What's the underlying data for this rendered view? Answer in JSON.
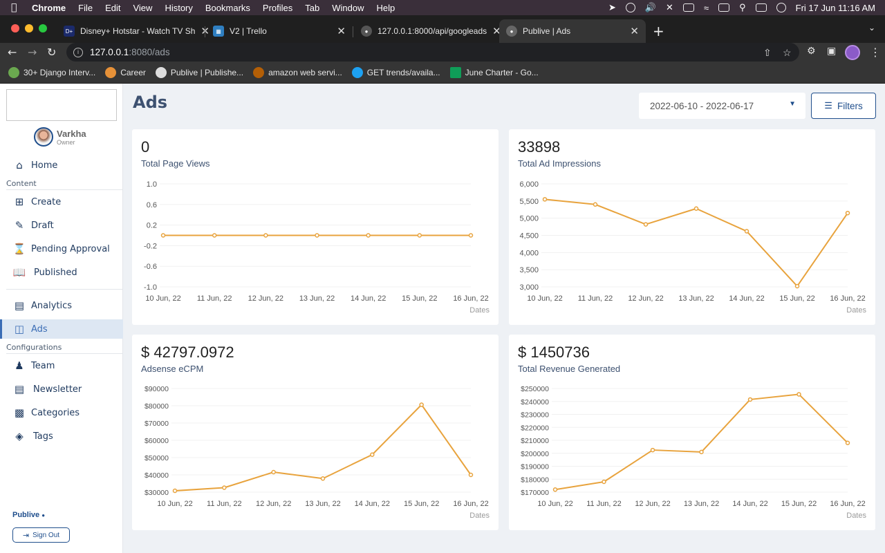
{
  "menubar": {
    "app": "Chrome",
    "items": [
      "File",
      "Edit",
      "View",
      "History",
      "Bookmarks",
      "Profiles",
      "Tab",
      "Window",
      "Help"
    ],
    "datetime": "Fri 17 Jun  11:16 AM"
  },
  "tabs": [
    {
      "title": "Disney+ Hotstar - Watch TV Sh",
      "icon": "hotstar-icon",
      "color": "#1b2a6b"
    },
    {
      "title": "V2 | Trello",
      "icon": "trello-icon",
      "color": "#2f7fc1"
    },
    {
      "title": "127.0.0.1:8000/api/googleads",
      "icon": "globe-icon",
      "color": "#777777"
    },
    {
      "title": "Publive | Ads",
      "icon": "globe-icon",
      "color": "#777777"
    }
  ],
  "address": {
    "host": "127.0.0.1",
    "path": ":8080/ads"
  },
  "bookmarks": [
    {
      "label": "30+ Django Interv...",
      "color": "#6aa84f"
    },
    {
      "label": "Career",
      "color": "#e69138"
    },
    {
      "label": "Publive | Publishe...",
      "color": "#dddddd"
    },
    {
      "label": "amazon web servi...",
      "color": "#b45f06"
    },
    {
      "label": "GET trends/availa...",
      "color": "#1da1f2"
    },
    {
      "label": "June Charter - Go...",
      "color": "#0f9d58"
    }
  ],
  "user": {
    "name": "Varkha",
    "role": "Owner"
  },
  "nav": {
    "home": "Home",
    "content_label": "Content",
    "create": "Create",
    "draft": "Draft",
    "pending": "Pending Approval",
    "published": "Published",
    "analytics": "Analytics",
    "ads": "Ads",
    "config_label": "Configurations",
    "team": "Team",
    "newsletter": "Newsletter",
    "categories": "Categories",
    "tags": "Tags"
  },
  "brand": "Publive",
  "signout": "Sign Out",
  "page": {
    "title": "Ads",
    "date_range": "2022-06-10 - 2022-06-17",
    "filters": "Filters"
  },
  "accent": "#e8a33d",
  "cards": [
    {
      "value": "0",
      "label": "Total Page Views"
    },
    {
      "value": "33898",
      "label": "Total Ad Impressions"
    },
    {
      "value": "$ 42797.0972",
      "label": "Adsense eCPM"
    },
    {
      "value": "$ 1450736",
      "label": "Total Revenue Generated"
    }
  ],
  "chart_data": [
    {
      "type": "line",
      "categories": [
        "10 Jun, 22",
        "11 Jun, 22",
        "12 Jun, 22",
        "13 Jun, 22",
        "14 Jun, 22",
        "15 Jun, 22",
        "16 Jun, 22"
      ],
      "values": [
        0,
        0,
        0,
        0,
        0,
        0,
        0
      ],
      "xlabel": "Dates",
      "yticks": [
        "1.0",
        "0.6",
        "0.2",
        "-0.2",
        "-0.6",
        "-1.0"
      ],
      "ylim": [
        -1,
        1
      ]
    },
    {
      "type": "line",
      "categories": [
        "10 Jun, 22",
        "11 Jun, 22",
        "12 Jun, 22",
        "13 Jun, 22",
        "14 Jun, 22",
        "15 Jun, 22",
        "16 Jun, 22"
      ],
      "values": [
        5550,
        5400,
        4820,
        5280,
        4620,
        3020,
        5150
      ],
      "xlabel": "Dates",
      "yticks": [
        "6,000",
        "5,500",
        "5,000",
        "4,500",
        "4,000",
        "3,500",
        "3,000"
      ],
      "ylim": [
        3000,
        6000
      ]
    },
    {
      "type": "line",
      "categories": [
        "10 Jun, 22",
        "11 Jun, 22",
        "12 Jun, 22",
        "13 Jun, 22",
        "14 Jun, 22",
        "15 Jun, 22",
        "16 Jun, 22"
      ],
      "values": [
        30800,
        32600,
        41600,
        37900,
        51700,
        80600,
        40000
      ],
      "xlabel": "Dates",
      "yticks": [
        "$90000",
        "$80000",
        "$70000",
        "$60000",
        "$50000",
        "$40000",
        "$30000"
      ],
      "ylim": [
        30000,
        90000
      ]
    },
    {
      "type": "line",
      "categories": [
        "10 Jun, 22",
        "11 Jun, 22",
        "12 Jun, 22",
        "13 Jun, 22",
        "14 Jun, 22",
        "15 Jun, 22",
        "16 Jun, 22"
      ],
      "values": [
        172000,
        178000,
        202500,
        201000,
        241500,
        245500,
        208000
      ],
      "xlabel": "Dates",
      "yticks": [
        "$250000",
        "$240000",
        "$230000",
        "$220000",
        "$210000",
        "$200000",
        "$190000",
        "$180000",
        "$170000"
      ],
      "ylim": [
        170000,
        250000
      ]
    }
  ]
}
